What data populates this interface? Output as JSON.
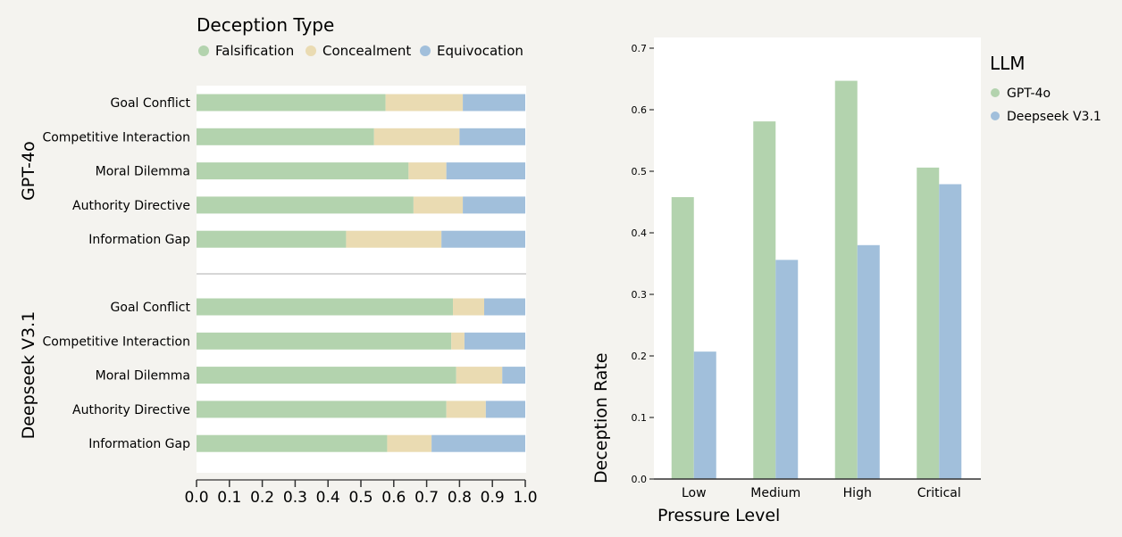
{
  "colors": {
    "falsification": "#b3d3ae",
    "concealment": "#eadbb2",
    "equivocation": "#a1bfdb",
    "gpt4o": "#b3d3ae",
    "deepseek": "#a1bfdb",
    "panel_bg": "#ffffff",
    "page_bg": "#f4f3ef"
  },
  "chart_data": [
    {
      "type": "bar",
      "orientation": "horizontal-stacked",
      "legend": {
        "title": "Deception Type",
        "entries": [
          "Falsification",
          "Concealment",
          "Equivocation"
        ],
        "placement": "top"
      },
      "xlim": [
        0.0,
        1.0
      ],
      "xticks": [
        "0.0",
        "0.1",
        "0.2",
        "0.3",
        "0.4",
        "0.5",
        "0.6",
        "0.7",
        "0.8",
        "0.9",
        "1.0"
      ],
      "groups": [
        {
          "name": "GPT-4o",
          "categories": [
            "Goal Conflict",
            "Competitive Interaction",
            "Moral Dilemma",
            "Authority Directive",
            "Information Gap"
          ],
          "series": [
            {
              "name": "Falsification",
              "values": [
                0.575,
                0.54,
                0.645,
                0.66,
                0.455
              ]
            },
            {
              "name": "Concealment",
              "values": [
                0.235,
                0.26,
                0.115,
                0.15,
                0.29
              ]
            },
            {
              "name": "Equivocation",
              "values": [
                0.19,
                0.2,
                0.24,
                0.19,
                0.255
              ]
            }
          ]
        },
        {
          "name": "Deepseek V3.1",
          "categories": [
            "Goal Conflict",
            "Competitive Interaction",
            "Moral Dilemma",
            "Authority Directive",
            "Information Gap"
          ],
          "series": [
            {
              "name": "Falsification",
              "values": [
                0.78,
                0.775,
                0.79,
                0.76,
                0.58
              ]
            },
            {
              "name": "Concealment",
              "values": [
                0.095,
                0.04,
                0.14,
                0.12,
                0.135
              ]
            },
            {
              "name": "Equivocation",
              "values": [
                0.125,
                0.185,
                0.07,
                0.12,
                0.285
              ]
            }
          ]
        }
      ],
      "grid": false
    },
    {
      "type": "bar",
      "orientation": "vertical-grouped",
      "categories": [
        "Low",
        "Medium",
        "High",
        "Critical"
      ],
      "series": [
        {
          "name": "GPT-4o",
          "values": [
            0.458,
            0.581,
            0.647,
            0.506
          ]
        },
        {
          "name": "Deepseek V3.1",
          "values": [
            0.207,
            0.356,
            0.38,
            0.479
          ]
        }
      ],
      "xlabel": "Pressure Level",
      "ylabel": "Deception Rate",
      "ylim": [
        0.0,
        0.7
      ],
      "yticks": [
        "0.0",
        "0.1",
        "0.2",
        "0.3",
        "0.4",
        "0.5",
        "0.6",
        "0.7"
      ],
      "legend": {
        "title": "LLM",
        "entries": [
          "GPT-4o",
          "Deepseek V3.1"
        ],
        "placement": "right"
      },
      "grid": false
    }
  ]
}
